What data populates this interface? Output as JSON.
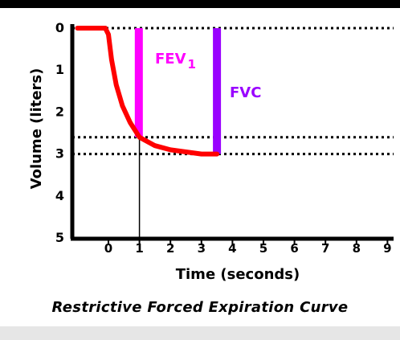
{
  "chart_data": {
    "type": "line",
    "caption": "Restrictive Forced Expiration Curve",
    "xlabel": "Time (seconds)",
    "ylabel": "Volume (liters)",
    "x_ticks": [
      "0",
      "1",
      "2",
      "3",
      "4",
      "5",
      "6",
      "7",
      "8",
      "9"
    ],
    "y_ticks": [
      "0",
      "1",
      "2",
      "3",
      "4",
      "5"
    ],
    "xlim": [
      -1.1,
      9
    ],
    "ylim": [
      0,
      5
    ],
    "y_inverted": true,
    "grid": false,
    "reference_lines": [
      {
        "axis": "y",
        "value": 0,
        "style": "dotted"
      },
      {
        "axis": "y",
        "value": 2.6,
        "style": "dotted"
      },
      {
        "axis": "y",
        "value": 3.0,
        "style": "dotted"
      },
      {
        "axis": "x",
        "value": 1,
        "style": "solid"
      }
    ],
    "markers": [
      {
        "label": "FEV",
        "subscript": "1",
        "color": "#ff00ff",
        "x": 0.98,
        "y_from": 0,
        "y_to": 2.6
      },
      {
        "label": "FVC",
        "color": "#9900ff",
        "x": 3.5,
        "y_from": 0,
        "y_to": 3.0
      }
    ],
    "series": [
      {
        "color": "#ff0000",
        "points": [
          [
            -1.0,
            0
          ],
          [
            -0.1,
            0
          ],
          [
            0.0,
            0.15
          ],
          [
            0.1,
            0.75
          ],
          [
            0.25,
            1.35
          ],
          [
            0.45,
            1.85
          ],
          [
            0.7,
            2.25
          ],
          [
            1.0,
            2.6
          ],
          [
            1.5,
            2.8
          ],
          [
            2.0,
            2.9
          ],
          [
            2.5,
            2.95
          ],
          [
            3.0,
            3.0
          ],
          [
            3.5,
            3.0
          ]
        ]
      }
    ]
  }
}
